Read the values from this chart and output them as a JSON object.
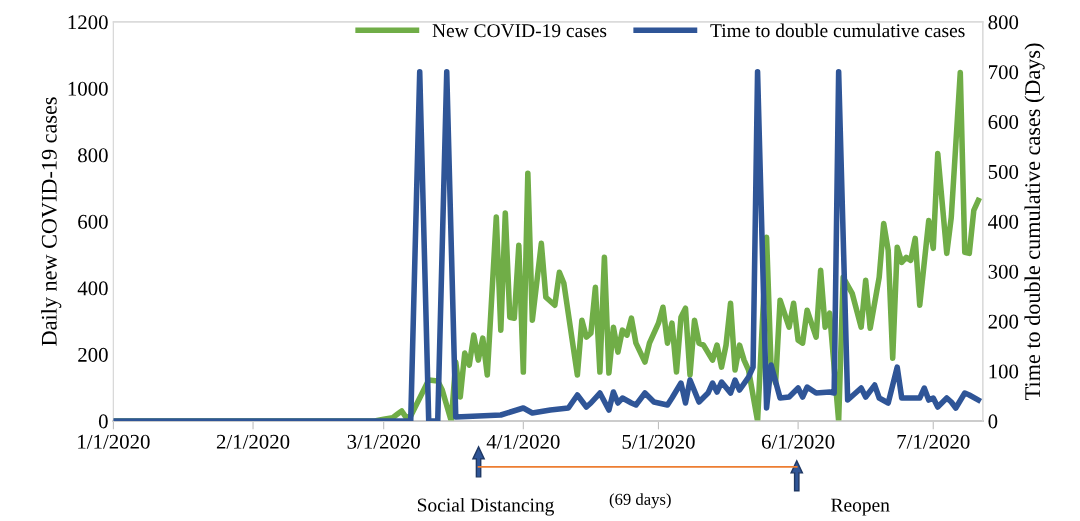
{
  "chart_data": {
    "type": "line",
    "xlabel": null,
    "ylabel": "Daily new COVID-19 cases",
    "y2label": "Time to double cumulative cases (Days)",
    "xlim": [
      "2020-01-01",
      "2020-07-12"
    ],
    "xticks": [
      {
        "value": "2020-01-01",
        "label": "1/1/2020"
      },
      {
        "value": "2020-02-01",
        "label": "2/1/2020"
      },
      {
        "value": "2020-03-01",
        "label": "3/1/2020"
      },
      {
        "value": "2020-04-01",
        "label": "4/1/2020"
      },
      {
        "value": "2020-05-01",
        "label": "5/1/2020"
      },
      {
        "value": "2020-06-01",
        "label": "6/1/2020"
      },
      {
        "value": "2020-07-01",
        "label": "7/1/2020"
      }
    ],
    "ylim": [
      0,
      1200
    ],
    "yticks": [
      0,
      200,
      400,
      600,
      800,
      1000,
      1200
    ],
    "y2lim": [
      0,
      800
    ],
    "y2ticks": [
      0,
      100,
      200,
      300,
      400,
      500,
      600,
      700,
      800
    ],
    "grid": false,
    "legend": "top right",
    "marker": "none",
    "line_style": "solid",
    "series": [
      {
        "name": "New COVID-19 cases",
        "color": "#70ad47",
        "x": [
          "2020-01-01",
          "2020-02-28",
          "2020-03-01",
          "2020-03-03",
          "2020-03-04",
          "2020-03-05",
          "2020-03-06",
          "2020-03-07",
          "2020-03-11",
          "2020-03-13",
          "2020-03-14",
          "2020-03-16",
          "2020-03-17",
          "2020-03-18",
          "2020-03-19",
          "2020-03-20",
          "2020-03-21",
          "2020-03-22",
          "2020-03-23",
          "2020-03-24",
          "2020-03-26",
          "2020-03-27",
          "2020-03-28",
          "2020-03-29",
          "2020-03-30",
          "2020-03-31",
          "2020-04-01",
          "2020-04-02",
          "2020-04-03",
          "2020-04-05",
          "2020-04-06",
          "2020-04-08",
          "2020-04-09",
          "2020-04-10",
          "2020-04-13",
          "2020-04-14",
          "2020-04-15",
          "2020-04-16",
          "2020-04-17",
          "2020-04-18",
          "2020-04-19",
          "2020-04-20",
          "2020-04-21",
          "2020-04-22",
          "2020-04-23",
          "2020-04-24",
          "2020-04-25",
          "2020-04-26",
          "2020-04-28",
          "2020-04-29",
          "2020-05-01",
          "2020-05-02",
          "2020-05-03",
          "2020-05-04",
          "2020-05-05",
          "2020-05-06",
          "2020-05-07",
          "2020-05-08",
          "2020-05-09",
          "2020-05-10",
          "2020-05-11",
          "2020-05-13",
          "2020-05-14",
          "2020-05-15",
          "2020-05-16",
          "2020-05-17",
          "2020-05-18",
          "2020-05-19",
          "2020-05-20",
          "2020-05-21",
          "2020-05-23",
          "2020-05-25",
          "2020-05-26",
          "2020-05-27",
          "2020-05-28",
          "2020-05-30",
          "2020-05-31",
          "2020-06-01",
          "2020-06-02",
          "2020-06-03",
          "2020-06-05",
          "2020-06-06",
          "2020-06-07",
          "2020-06-08",
          "2020-06-10",
          "2020-06-11",
          "2020-06-13",
          "2020-06-15",
          "2020-06-16",
          "2020-06-17",
          "2020-06-19",
          "2020-06-20",
          "2020-06-21",
          "2020-06-22",
          "2020-06-23",
          "2020-06-24",
          "2020-06-25",
          "2020-06-26",
          "2020-06-27",
          "2020-06-28",
          "2020-06-30",
          "2020-07-01",
          "2020-07-02",
          "2020-07-03",
          "2020-07-04",
          "2020-07-05",
          "2020-07-07",
          "2020-07-08",
          "2020-07-09",
          "2020-07-10",
          "2020-07-11"
        ],
        "values": [
          0,
          0,
          5,
          10,
          20,
          30,
          10,
          15,
          123,
          120,
          93,
          0,
          177,
          72,
          204,
          168,
          258,
          183,
          249,
          138,
          613,
          273,
          625,
          312,
          309,
          528,
          147,
          745,
          303,
          534,
          372,
          348,
          447,
          414,
          138,
          303,
          252,
          264,
          402,
          147,
          492,
          144,
          282,
          207,
          273,
          258,
          309,
          234,
          177,
          234,
          294,
          342,
          234,
          294,
          147,
          312,
          339,
          138,
          303,
          234,
          228,
          183,
          228,
          162,
          228,
          354,
          153,
          228,
          183,
          153,
          0,
          552,
          162,
          114,
          363,
          282,
          354,
          243,
          234,
          333,
          252,
          453,
          282,
          324,
          0,
          432,
          384,
          282,
          423,
          279,
          432,
          594,
          513,
          189,
          522,
          477,
          492,
          483,
          549,
          348,
          603,
          519,
          804,
          654,
          504,
          612,
          1048,
          507,
          504,
          633,
          663
        ]
      },
      {
        "name": "Time to double cumulative cases",
        "color": "#2f5597",
        "axis": "y2",
        "x": [
          "2020-01-01",
          "2020-03-07",
          "2020-03-09",
          "2020-03-11",
          "2020-03-13",
          "2020-03-15",
          "2020-03-17",
          "2020-03-27",
          "2020-04-01",
          "2020-04-03",
          "2020-04-07",
          "2020-04-11",
          "2020-04-13",
          "2020-04-15",
          "2020-04-16",
          "2020-04-18",
          "2020-04-20",
          "2020-04-21",
          "2020-04-22",
          "2020-04-23",
          "2020-04-25",
          "2020-04-26",
          "2020-04-28",
          "2020-04-30",
          "2020-05-03",
          "2020-05-04",
          "2020-05-06",
          "2020-05-07",
          "2020-05-08",
          "2020-05-10",
          "2020-05-12",
          "2020-05-13",
          "2020-05-14",
          "2020-05-15",
          "2020-05-17",
          "2020-05-18",
          "2020-05-19",
          "2020-05-21",
          "2020-05-22",
          "2020-05-23",
          "2020-05-25",
          "2020-05-26",
          "2020-05-28",
          "2020-05-30",
          "2020-06-01",
          "2020-06-02",
          "2020-06-03",
          "2020-06-05",
          "2020-06-08",
          "2020-06-09",
          "2020-06-10",
          "2020-06-12",
          "2020-06-15",
          "2020-06-16",
          "2020-06-18",
          "2020-06-19",
          "2020-06-21",
          "2020-06-23",
          "2020-06-24",
          "2020-06-28",
          "2020-06-29",
          "2020-06-30",
          "2020-07-01",
          "2020-07-02",
          "2020-07-04",
          "2020-07-05",
          "2020-07-06",
          "2020-07-08",
          "2020-07-09",
          "2020-07-11"
        ],
        "values": [
          0,
          0,
          700,
          0,
          0,
          700,
          8,
          12,
          26,
          16,
          22,
          26,
          52,
          28,
          36,
          56,
          22,
          58,
          36,
          46,
          36,
          32,
          56,
          38,
          32,
          46,
          76,
          36,
          82,
          38,
          56,
          76,
          58,
          78,
          56,
          82,
          62,
          88,
          108,
          700,
          26,
          112,
          46,
          48,
          66,
          48,
          68,
          56,
          58,
          56,
          700,
          42,
          66,
          48,
          72,
          46,
          36,
          108,
          46,
          46,
          66,
          42,
          46,
          28,
          46,
          38,
          26,
          56,
          52,
          42
        ]
      }
    ],
    "annotations": [
      "Social Distancing",
      "(69 days)",
      "Reopen"
    ]
  }
}
